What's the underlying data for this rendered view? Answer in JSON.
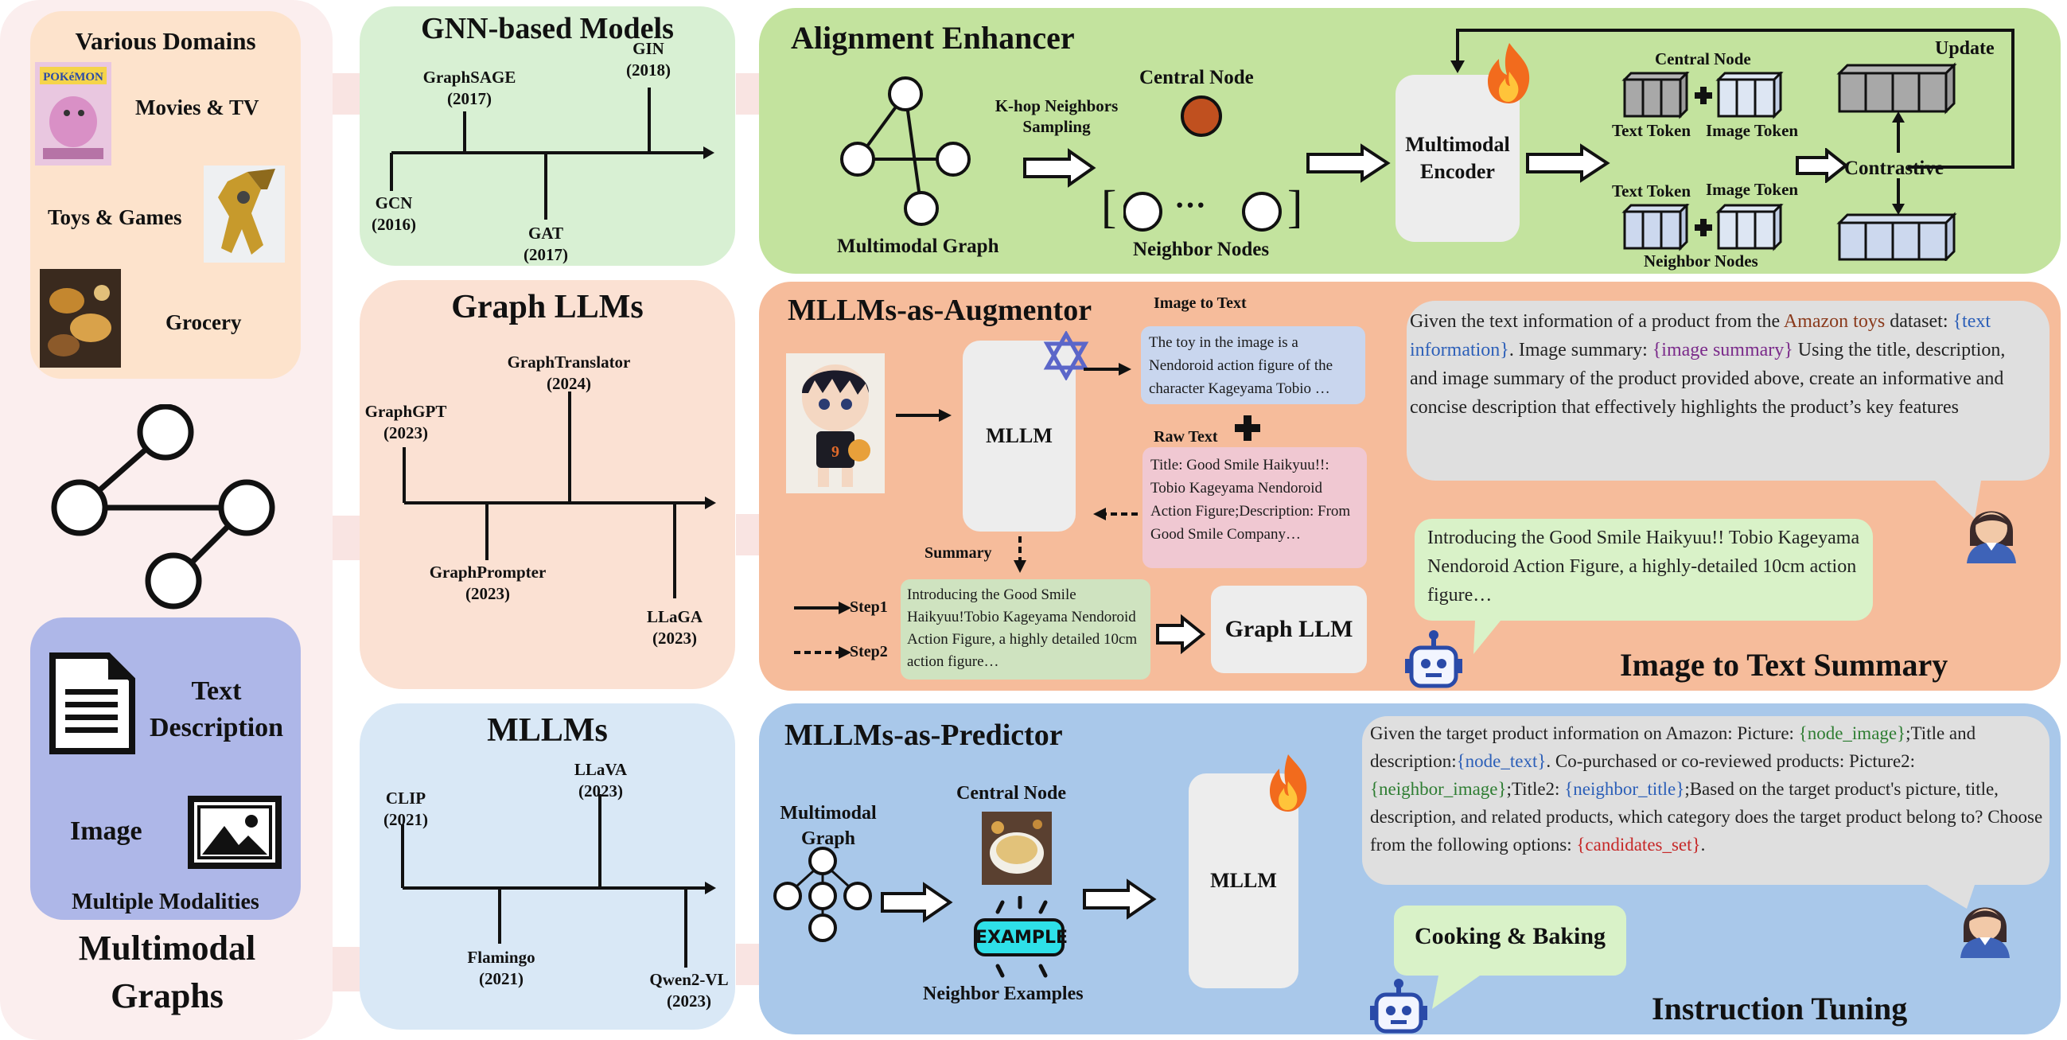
{
  "left": {
    "domains_title": "Various Domains",
    "domains": [
      "Movies & TV",
      "Toys & Games",
      "Grocery"
    ],
    "modalities": {
      "text": "Text Description",
      "image": "Image",
      "title": "Multiple Modalities"
    },
    "footer": "Multimodal Graphs"
  },
  "gnn": {
    "title": "GNN-based Models",
    "items": [
      {
        "name": "GraphSAGE",
        "year": "(2017)"
      },
      {
        "name": "GIN",
        "year": "(2018)"
      },
      {
        "name": "GCN",
        "year": "(2016)"
      },
      {
        "name": "GAT",
        "year": "(2017)"
      }
    ]
  },
  "graphllm": {
    "title": "Graph LLMs",
    "items": [
      {
        "name": "GraphTranslator",
        "year": "(2024)"
      },
      {
        "name": "GraphGPT",
        "year": "(2023)"
      },
      {
        "name": "GraphPrompter",
        "year": "(2023)"
      },
      {
        "name": "LLaGA",
        "year": "(2023)"
      }
    ]
  },
  "mllms": {
    "title": "MLLMs",
    "items": [
      {
        "name": "LLaVA",
        "year": "(2023)"
      },
      {
        "name": "CLIP",
        "year": "(2021)"
      },
      {
        "name": "Flamingo",
        "year": "(2021)"
      },
      {
        "name": "Qwen2-VL",
        "year": "(2023)"
      }
    ]
  },
  "alignment": {
    "title": "Alignment Enhancer",
    "multimodal_graph": "Multimodal Graph",
    "khop": "K-hop Neighbors Sampling",
    "central_node": "Central Node",
    "neighbor_nodes": "Neighbor Nodes",
    "ellipsis": "···",
    "encoder": "Multimodal Encoder",
    "central_node_label": "Central Node",
    "text_token": "Text Token",
    "image_token": "Image Token",
    "neighbor_nodes_label": "Neighbor Nodes",
    "contrastive": "Contrastive",
    "update": "Update"
  },
  "augmentor": {
    "title": "MLLMs-as-Augmentor",
    "mllm": "MLLM",
    "image_to_text": "Image to Text",
    "raw_text": "Raw Text",
    "summary_label": "Summary",
    "caption": "The toy in the image is a Nendoroid action figure of the character Kageyama Tobio …",
    "raw": "Title: Good Smile Haikyuu!!: Tobio Kageyama Nendoroid Action Figure;Description: From Good Smile Company…",
    "summary_text": "Introducing the Good Smile Haikyuu!Tobio Kageyama Nendoroid Action Figure, a highly detailed 10cm action figure…",
    "step1": "Step1",
    "step2": "Step2",
    "graph_llm": "Graph LLM",
    "prompt_parts": [
      {
        "t": "Given the text information of a product from the ",
        "c": "#222222"
      },
      {
        "t": "Amazon toys",
        "c": "#8a3a1c"
      },
      {
        "t": " dataset: ",
        "c": "#222222"
      },
      {
        "t": "{text information}",
        "c": "#2c5fb8"
      },
      {
        "t": ". Image summary: ",
        "c": "#222222"
      },
      {
        "t": "{image summary}",
        "c": "#7a2a8a"
      },
      {
        "t": " Using the title, description, and image summary of the product provided above, create an informative and concise description that effectively highlights the product’s key features",
        "c": "#222222"
      }
    ],
    "response": "Introducing the Good Smile Haikyuu!! Tobio Kageyama Nendoroid Action Figure, a highly-detailed 10cm action figure…",
    "footer": "Image to Text Summary"
  },
  "predictor": {
    "title": "MLLMs-as-Predictor",
    "multimodal_graph": "Multimodal Graph",
    "central_node": "Central Node",
    "example_badge": "EXAMPLE",
    "neighbor_examples": "Neighbor Examples",
    "mllm": "MLLM",
    "prompt_parts": [
      {
        "t": "Given the target product information on Amazon: Picture: ",
        "c": "#222222"
      },
      {
        "t": "{node_image}",
        "c": "#2e7d32"
      },
      {
        "t": ";Title and description:",
        "c": "#222222"
      },
      {
        "t": "{node_text}",
        "c": "#2c5fb8"
      },
      {
        "t": ". Co-purchased or co-reviewed products: Picture2: ",
        "c": "#222222"
      },
      {
        "t": "{neighbor_image}",
        "c": "#2e7d32"
      },
      {
        "t": ";Title2: ",
        "c": "#222222"
      },
      {
        "t": "{neighbor_title}",
        "c": "#2c5fb8"
      },
      {
        "t": ";Based on the target product's picture, title, description, and related products, which category does the target product belong to? Choose from the following options: ",
        "c": "#222222"
      },
      {
        "t": "{candidates_set}",
        "c": "#c62828"
      },
      {
        "t": ".",
        "c": "#222222"
      }
    ],
    "answer": "Cooking & Baking",
    "footer": "Instruction Tuning"
  },
  "colors": {
    "left_bg": "#fbeeee",
    "domains_bg": "#fde3cc",
    "modalities_bg": "#aeb7e8",
    "gnn_bg": "#d8f0d3",
    "graphllm_bg": "#fbe1d3",
    "mllms_bg": "#d9e8f6",
    "alignment_bg": "#c3e39e",
    "augmentor_bg": "#f6bc9b",
    "predictor_bg": "#a9c8ea",
    "arrow_bg": "#f9e4e2"
  }
}
